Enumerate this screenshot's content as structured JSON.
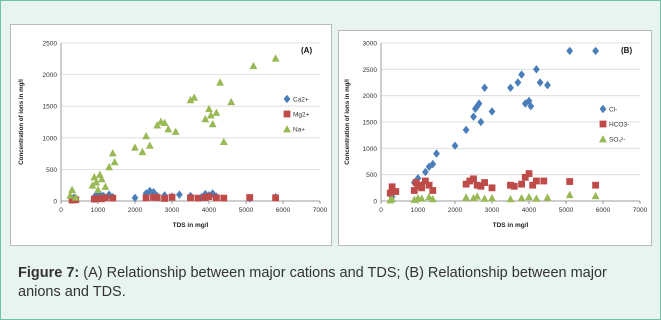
{
  "figure": {
    "caption_label": "Figure 7:",
    "caption_text": " (A) Relationship between major cations and TDS; (B) Relationship between major anions and TDS."
  },
  "chart_data": [
    {
      "type": "scatter",
      "panel_label": "(A)",
      "xlabel": "TDS in mg/l",
      "ylabel": "Concentration of ions in mg/l",
      "xlim": [
        0,
        7000
      ],
      "ylim": [
        0,
        2500
      ],
      "xticks": [
        0,
        1000,
        2000,
        3000,
        4000,
        5000,
        6000,
        7000
      ],
      "yticks": [
        0,
        500,
        1000,
        1500,
        2000,
        2500
      ],
      "grid": true,
      "legend_position": "right",
      "series": [
        {
          "name": "Ca2+",
          "color": "#4a7ebb",
          "marker": "diamond",
          "points": [
            [
              300,
              30
            ],
            [
              350,
              55
            ],
            [
              400,
              40
            ],
            [
              900,
              60
            ],
            [
              950,
              90
            ],
            [
              1000,
              70
            ],
            [
              1050,
              110
            ],
            [
              1150,
              80
            ],
            [
              1300,
              100
            ],
            [
              1400,
              60
            ],
            [
              2000,
              50
            ],
            [
              2300,
              120
            ],
            [
              2400,
              160
            ],
            [
              2500,
              140
            ],
            [
              2600,
              80
            ],
            [
              2800,
              90
            ],
            [
              3000,
              70
            ],
            [
              3200,
              100
            ],
            [
              3500,
              80
            ],
            [
              3800,
              60
            ],
            [
              3900,
              110
            ],
            [
              4000,
              90
            ],
            [
              4100,
              120
            ],
            [
              4200,
              70
            ],
            [
              5100,
              40
            ],
            [
              5800,
              60
            ]
          ]
        },
        {
          "name": "Mg2+",
          "color": "#be4b48",
          "marker": "square",
          "points": [
            [
              300,
              15
            ],
            [
              400,
              20
            ],
            [
              900,
              30
            ],
            [
              1000,
              40
            ],
            [
              1100,
              35
            ],
            [
              1200,
              50
            ],
            [
              1400,
              45
            ],
            [
              2300,
              50
            ],
            [
              2500,
              60
            ],
            [
              2600,
              55
            ],
            [
              2800,
              40
            ],
            [
              3000,
              60
            ],
            [
              3500,
              50
            ],
            [
              3700,
              45
            ],
            [
              3900,
              55
            ],
            [
              4000,
              70
            ],
            [
              4200,
              50
            ],
            [
              4400,
              45
            ],
            [
              5100,
              55
            ],
            [
              5800,
              50
            ]
          ]
        },
        {
          "name": "Na+",
          "color": "#98b954",
          "marker": "triangle",
          "points": [
            [
              250,
              90
            ],
            [
              300,
              180
            ],
            [
              400,
              60
            ],
            [
              850,
              250
            ],
            [
              900,
              380
            ],
            [
              950,
              300
            ],
            [
              1000,
              180
            ],
            [
              1050,
              420
            ],
            [
              1100,
              350
            ],
            [
              1200,
              230
            ],
            [
              1300,
              540
            ],
            [
              1400,
              760
            ],
            [
              1450,
              620
            ],
            [
              2000,
              850
            ],
            [
              2200,
              780
            ],
            [
              2300,
              1030
            ],
            [
              2400,
              880
            ],
            [
              2600,
              1200
            ],
            [
              2700,
              1260
            ],
            [
              2800,
              1240
            ],
            [
              2900,
              1140
            ],
            [
              3100,
              1100
            ],
            [
              3500,
              1600
            ],
            [
              3600,
              1640
            ],
            [
              3900,
              1300
            ],
            [
              4000,
              1460
            ],
            [
              4050,
              1360
            ],
            [
              4100,
              1220
            ],
            [
              4200,
              1400
            ],
            [
              4300,
              1880
            ],
            [
              4400,
              940
            ],
            [
              4600,
              1570
            ],
            [
              5200,
              2140
            ],
            [
              5800,
              2260
            ]
          ]
        }
      ]
    },
    {
      "type": "scatter",
      "panel_label": "(B)",
      "xlabel": "TDS in mg/l",
      "ylabel": "Concentration of ions in mg/l",
      "xlim": [
        0,
        7000
      ],
      "ylim": [
        0,
        3000
      ],
      "xticks": [
        0,
        1000,
        2000,
        3000,
        4000,
        5000,
        6000,
        7000
      ],
      "yticks": [
        0,
        500,
        1000,
        1500,
        2000,
        2500,
        3000
      ],
      "grid": true,
      "legend_position": "right",
      "series": [
        {
          "name": "Cl-",
          "color": "#4a7ebb",
          "marker": "diamond",
          "points": [
            [
              300,
              80
            ],
            [
              900,
              350
            ],
            [
              1000,
              430
            ],
            [
              1100,
              300
            ],
            [
              1200,
              550
            ],
            [
              1300,
              650
            ],
            [
              1400,
              700
            ],
            [
              1500,
              900
            ],
            [
              2000,
              1050
            ],
            [
              2300,
              1350
            ],
            [
              2500,
              1600
            ],
            [
              2550,
              1750
            ],
            [
              2600,
              1800
            ],
            [
              2650,
              1850
            ],
            [
              2700,
              1500
            ],
            [
              2800,
              2150
            ],
            [
              3000,
              1700
            ],
            [
              3500,
              2150
            ],
            [
              3700,
              2250
            ],
            [
              3800,
              2400
            ],
            [
              3900,
              1850
            ],
            [
              4000,
              1900
            ],
            [
              4050,
              1800
            ],
            [
              4200,
              2500
            ],
            [
              4300,
              2250
            ],
            [
              4500,
              2200
            ],
            [
              5100,
              2850
            ],
            [
              5800,
              2850
            ]
          ]
        },
        {
          "name": "HCO3-",
          "color": "#be4b48",
          "marker": "square",
          "points": [
            [
              250,
              150
            ],
            [
              300,
              270
            ],
            [
              400,
              180
            ],
            [
              900,
              200
            ],
            [
              950,
              350
            ],
            [
              1000,
              280
            ],
            [
              1050,
              300
            ],
            [
              1100,
              250
            ],
            [
              1200,
              380
            ],
            [
              1300,
              300
            ],
            [
              1400,
              200
            ],
            [
              2300,
              320
            ],
            [
              2400,
              380
            ],
            [
              2500,
              420
            ],
            [
              2600,
              300
            ],
            [
              2700,
              280
            ],
            [
              2800,
              350
            ],
            [
              3000,
              250
            ],
            [
              3500,
              300
            ],
            [
              3600,
              280
            ],
            [
              3800,
              320
            ],
            [
              3900,
              450
            ],
            [
              4000,
              520
            ],
            [
              4100,
              300
            ],
            [
              4200,
              380
            ],
            [
              4400,
              380
            ],
            [
              5100,
              370
            ],
            [
              5800,
              300
            ]
          ]
        },
        {
          "name": "SO₄²-",
          "color": "#98b954",
          "marker": "triangle",
          "points": [
            [
              250,
              20
            ],
            [
              300,
              40
            ],
            [
              900,
              30
            ],
            [
              1000,
              60
            ],
            [
              1100,
              50
            ],
            [
              1300,
              80
            ],
            [
              1400,
              40
            ],
            [
              2300,
              70
            ],
            [
              2500,
              60
            ],
            [
              2600,
              90
            ],
            [
              2800,
              50
            ],
            [
              3000,
              60
            ],
            [
              3500,
              40
            ],
            [
              3800,
              60
            ],
            [
              4000,
              80
            ],
            [
              4200,
              50
            ],
            [
              4500,
              70
            ],
            [
              5100,
              120
            ],
            [
              5800,
              100
            ]
          ]
        }
      ]
    }
  ]
}
